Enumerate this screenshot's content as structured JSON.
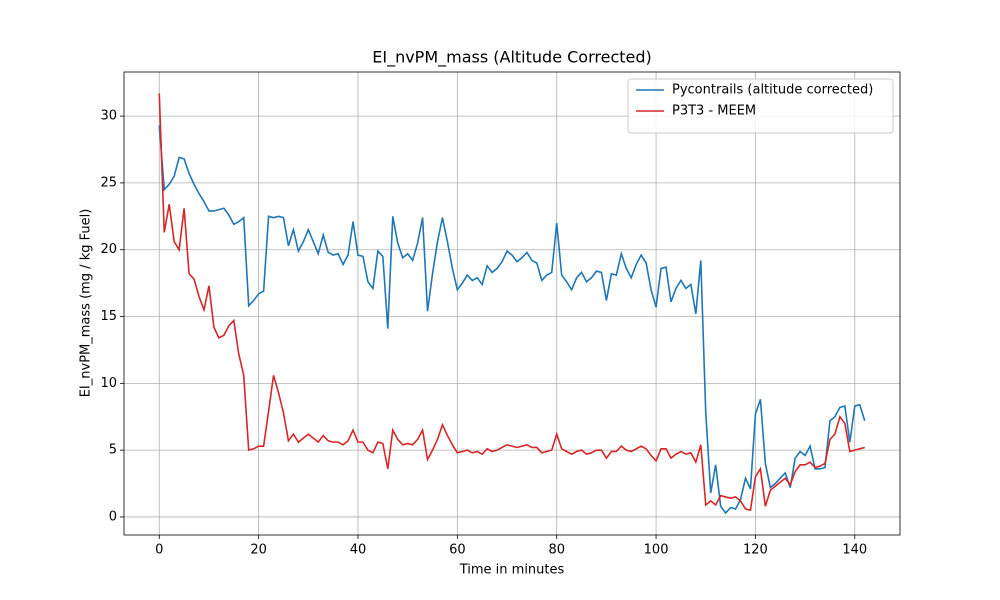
{
  "chart_data": {
    "type": "line",
    "title": "EI_nvPM_mass (Altitude Corrected)",
    "x_label": "Time in minutes",
    "y_label": "EI_nvPM_mass (mg / kg Fuel)",
    "x": [
      0,
      1,
      2,
      3,
      4,
      5,
      6,
      7,
      8,
      9,
      10,
      11,
      12,
      13,
      14,
      15,
      16,
      17,
      18,
      19,
      20,
      21,
      22,
      23,
      24,
      25,
      26,
      27,
      28,
      29,
      30,
      31,
      32,
      33,
      34,
      35,
      36,
      37,
      38,
      39,
      40,
      41,
      42,
      43,
      44,
      45,
      46,
      47,
      48,
      49,
      50,
      51,
      52,
      53,
      54,
      55,
      56,
      57,
      58,
      59,
      60,
      61,
      62,
      63,
      64,
      65,
      66,
      67,
      68,
      69,
      70,
      71,
      72,
      73,
      74,
      75,
      76,
      77,
      78,
      79,
      80,
      81,
      82,
      83,
      84,
      85,
      86,
      87,
      88,
      89,
      90,
      91,
      92,
      93,
      94,
      95,
      96,
      97,
      98,
      99,
      100,
      101,
      102,
      103,
      104,
      105,
      106,
      107,
      108,
      109,
      110,
      111,
      112,
      113,
      114,
      115,
      116,
      117,
      118,
      119,
      120,
      121,
      122,
      123,
      124,
      125,
      126,
      127,
      128,
      129,
      130,
      131,
      132,
      133,
      134,
      135,
      136,
      137,
      138,
      139,
      140,
      141,
      142
    ],
    "series": [
      {
        "name": "Pycontrails (altitude corrected)",
        "color": "#1f77b4",
        "values": [
          29.3,
          24.5,
          24.9,
          25.5,
          26.9,
          26.8,
          25.7,
          24.9,
          24.2,
          23.6,
          22.9,
          22.9,
          23.0,
          23.1,
          22.6,
          21.9,
          22.1,
          22.4,
          15.8,
          16.2,
          16.7,
          16.9,
          22.5,
          22.4,
          22.5,
          22.4,
          20.3,
          21.5,
          19.9,
          20.6,
          21.5,
          20.6,
          19.7,
          21.1,
          19.8,
          19.6,
          19.7,
          18.9,
          19.6,
          22.1,
          19.6,
          19.5,
          17.6,
          17.1,
          19.9,
          19.5,
          14.1,
          22.5,
          20.5,
          19.4,
          19.7,
          19.2,
          20.5,
          22.4,
          15.4,
          18.2,
          20.6,
          22.4,
          20.6,
          18.6,
          17.0,
          17.5,
          18.1,
          17.7,
          17.9,
          17.4,
          18.8,
          18.3,
          18.6,
          19.1,
          19.9,
          19.6,
          19.1,
          19.4,
          19.8,
          19.2,
          19.0,
          17.7,
          18.1,
          18.3,
          22.0,
          18.1,
          17.6,
          17.0,
          17.9,
          18.3,
          17.6,
          17.9,
          18.4,
          18.3,
          16.2,
          18.2,
          18.1,
          19.7,
          18.6,
          17.9,
          18.9,
          19.6,
          19.0,
          17.0,
          15.7,
          18.6,
          18.7,
          16.1,
          17.1,
          17.7,
          17.1,
          17.4,
          15.2,
          19.2,
          7.8,
          1.8,
          3.9,
          0.8,
          0.3,
          0.7,
          0.6,
          1.3,
          2.9,
          2.1,
          7.7,
          8.8,
          4.0,
          2.2,
          2.5,
          2.9,
          3.3,
          2.2,
          4.4,
          4.9,
          4.6,
          5.3,
          3.6,
          3.6,
          3.7,
          7.2,
          7.5,
          8.2,
          8.3,
          5.6,
          8.3,
          8.4,
          7.2
        ]
      },
      {
        "name": "P3T3 - MEEM",
        "color": "#d62728",
        "values": [
          31.7,
          21.3,
          23.4,
          20.6,
          20.0,
          23.1,
          18.2,
          17.8,
          16.5,
          15.5,
          17.3,
          14.2,
          13.4,
          13.6,
          14.3,
          14.7,
          12.2,
          10.6,
          5.0,
          5.1,
          5.3,
          5.3,
          7.9,
          10.6,
          9.3,
          7.8,
          5.7,
          6.2,
          5.6,
          5.9,
          6.2,
          5.9,
          5.6,
          6.1,
          5.7,
          5.6,
          5.6,
          5.4,
          5.7,
          6.5,
          5.6,
          5.6,
          5.0,
          4.8,
          5.6,
          5.5,
          3.6,
          6.5,
          5.8,
          5.4,
          5.5,
          5.4,
          5.8,
          6.5,
          4.3,
          5.0,
          5.8,
          6.9,
          6.1,
          5.4,
          4.8,
          4.9,
          5.0,
          4.8,
          4.9,
          4.7,
          5.1,
          4.9,
          5.0,
          5.2,
          5.4,
          5.3,
          5.2,
          5.3,
          5.4,
          5.2,
          5.2,
          4.8,
          4.9,
          5.0,
          6.2,
          5.1,
          4.9,
          4.7,
          4.9,
          5.0,
          4.7,
          4.8,
          5.0,
          5.0,
          4.4,
          4.9,
          4.9,
          5.3,
          5.0,
          4.9,
          5.1,
          5.3,
          5.1,
          4.6,
          4.2,
          5.1,
          5.1,
          4.4,
          4.7,
          4.9,
          4.7,
          4.8,
          4.1,
          5.4,
          0.9,
          1.2,
          0.9,
          1.6,
          1.5,
          1.4,
          1.5,
          1.2,
          0.6,
          0.5,
          3.0,
          3.6,
          0.8,
          2.0,
          2.3,
          2.6,
          2.9,
          2.4,
          3.4,
          3.9,
          3.9,
          4.1,
          3.7,
          3.8,
          4.0,
          5.8,
          6.2,
          7.5,
          7.0,
          4.9,
          5.0,
          5.1,
          5.2
        ]
      }
    ],
    "xlim": [
      -7.1,
      149.1
    ],
    "ylim": [
      -1.35,
      33.3
    ],
    "xticks": [
      0,
      20,
      40,
      60,
      80,
      100,
      120,
      140
    ],
    "yticks": [
      0,
      5,
      10,
      15,
      20,
      25,
      30
    ],
    "grid": true,
    "legend": "upper right"
  }
}
